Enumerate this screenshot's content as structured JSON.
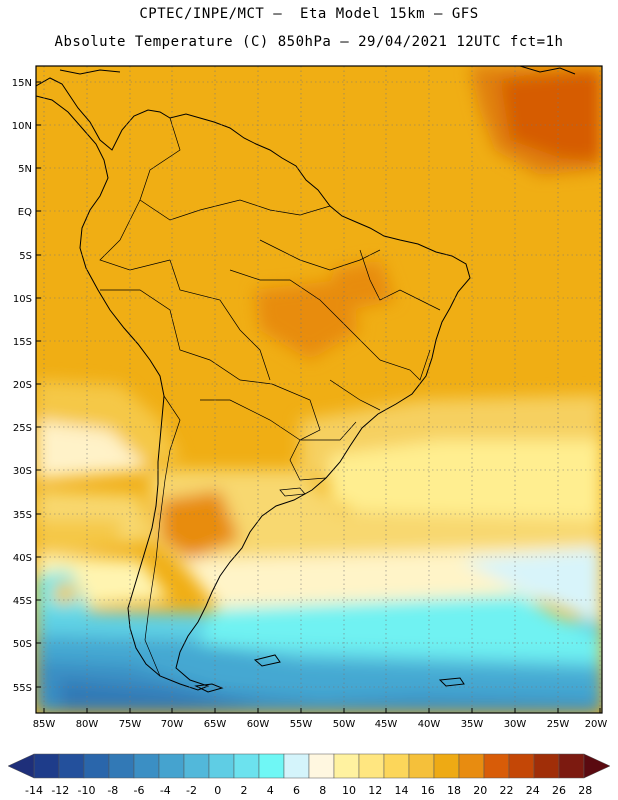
{
  "header": {
    "line1": "CPTEC/INPE/MCT –  Eta Model 15km – GFS",
    "line2": "Absolute Temperature (C) 850hPa – 29/04/2021 12UTC fct=1h"
  },
  "map": {
    "lat_labels": [
      "15N",
      "10N",
      "5N",
      "EQ",
      "5S",
      "10S",
      "15S",
      "20S",
      "25S",
      "30S",
      "35S",
      "40S",
      "45S",
      "50S",
      "55S"
    ],
    "lon_labels": [
      "85W",
      "80W",
      "75W",
      "70W",
      "65W",
      "60W",
      "55W",
      "50W",
      "45W",
      "40W",
      "35W",
      "30W",
      "25W",
      "20W"
    ]
  },
  "colorbar": {
    "ticks": [
      "-14",
      "-12",
      "-10",
      "-8",
      "-6",
      "-4",
      "-2",
      "0",
      "2",
      "4",
      "6",
      "8",
      "10",
      "12",
      "14",
      "16",
      "18",
      "20",
      "22",
      "24",
      "26",
      "28"
    ],
    "low_color": "#1e2f7a",
    "high_color": "#5a0a10",
    "colors": [
      "#1e3c8a",
      "#23509c",
      "#2a66ab",
      "#3279b6",
      "#3b8fc4",
      "#45a3cf",
      "#52b8da",
      "#5fcde4",
      "#6ce2ee",
      "#6ff7f5",
      "#d4f4fb",
      "#fff7e0",
      "#fff2a0",
      "#ffe680",
      "#fcd65a",
      "#f5c03a",
      "#eeaa14",
      "#e88c10",
      "#d85c08",
      "#c44706",
      "#a02e08",
      "#7c1a10"
    ]
  }
}
